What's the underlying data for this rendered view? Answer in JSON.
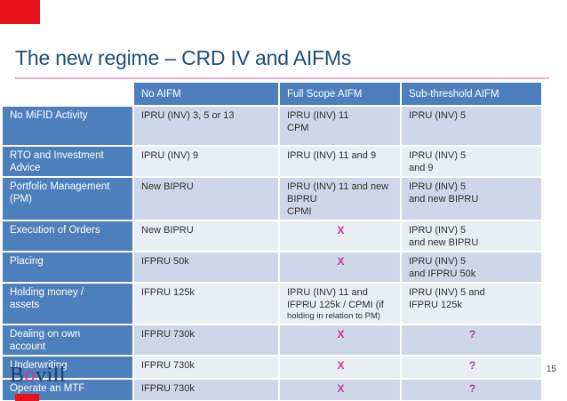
{
  "slide": {
    "title": "The new regime – CRD IV and AIFMs",
    "page_number": "15",
    "logo": {
      "b": "B",
      "o": "o",
      "rest": "vill"
    }
  },
  "colors": {
    "accent_red": "#e9131e",
    "title_blue": "#1d4e79",
    "pink_line": "#f4aec8",
    "header_blue": "#4c7fbb",
    "band_dark": "#cdd7e7",
    "band_light": "#e9edf4",
    "pink_accent": "#cc3399",
    "logo_navy": "#223a6d",
    "logo_o_pink": "#d5368f",
    "cell_text": "#2e2e2e"
  },
  "table": {
    "column_headers": [
      "",
      "No AIFM",
      "Full Scope AIFM",
      "Sub-threshold AIFM"
    ],
    "rows": [
      {
        "label_lines": [
          "No MiFID Activity"
        ],
        "cells": [
          {
            "lines": [
              {
                "t": "IPRU (INV) 3, 5 or 13"
              }
            ]
          },
          {
            "lines": [
              {
                "t": "IPRU (INV) 11"
              },
              {
                "t": "CPM"
              }
            ]
          },
          {
            "lines": [
              {
                "t": "IPRU (INV) 5"
              }
            ]
          }
        ]
      },
      {
        "label_lines": [
          "RTO and Investment",
          "Advice"
        ],
        "cells": [
          {
            "lines": [
              {
                "t": "IPRU (INV) 9"
              }
            ]
          },
          {
            "lines": [
              {
                "t": "IPRU (INV) 11 and 9"
              }
            ]
          },
          {
            "lines": [
              {
                "t": "IPRU (INV) 5"
              },
              {
                "t": "and 9"
              }
            ]
          }
        ]
      },
      {
        "label_lines": [
          "Portfolio Management",
          "(PM)"
        ],
        "cells": [
          {
            "lines": [
              {
                "t": "New BIPRU"
              }
            ]
          },
          {
            "lines": [
              {
                "t": "IPRU (INV) 11 and new"
              },
              {
                "t": "BIPRU"
              },
              {
                "t": "CPMI"
              }
            ]
          },
          {
            "lines": [
              {
                "t": "IPRU (INV) 5"
              },
              {
                "t": "and new BIPRU"
              }
            ]
          }
        ]
      },
      {
        "label_lines": [
          "Execution of Orders"
        ],
        "cells": [
          {
            "lines": [
              {
                "t": "New BIPRU"
              }
            ]
          },
          {
            "pink": true,
            "lines": [
              {
                "t": "X"
              }
            ]
          },
          {
            "lines": [
              {
                "t": "IPRU (INV) 5"
              },
              {
                "t": "and new BIPRU"
              }
            ]
          }
        ]
      },
      {
        "label_lines": [
          "Placing"
        ],
        "cells": [
          {
            "lines": [
              {
                "t": "IFPRU 50k"
              }
            ]
          },
          {
            "pink": true,
            "lines": [
              {
                "t": "X"
              }
            ]
          },
          {
            "lines": [
              {
                "t": "IPRU (INV) 5"
              },
              {
                "t": "and IFPRU 50k"
              }
            ]
          }
        ]
      },
      {
        "label_lines": [
          "Holding money /",
          "assets"
        ],
        "cells": [
          {
            "lines": [
              {
                "t": "IFPRU 125k"
              }
            ]
          },
          {
            "lines": [
              {
                "t": "IPRU (INV) 11 and"
              },
              {
                "t": "IFPRU 125k / CPMI (if"
              },
              {
                "t": "holding in relation to PM)",
                "small": true
              }
            ]
          },
          {
            "lines": [
              {
                "t": "IPRU (INV) 5 and"
              },
              {
                "t": "IFPRU 125k"
              }
            ]
          }
        ]
      },
      {
        "label_lines": [
          "Dealing on own",
          "account"
        ],
        "cells": [
          {
            "lines": [
              {
                "t": "IFPRU 730k"
              }
            ]
          },
          {
            "pink": true,
            "lines": [
              {
                "t": "X"
              }
            ]
          },
          {
            "pink": true,
            "lines": [
              {
                "t": "?"
              }
            ]
          }
        ]
      },
      {
        "label_lines": [
          "Underwriting"
        ],
        "cells": [
          {
            "lines": [
              {
                "t": "IFPRU 730k"
              }
            ]
          },
          {
            "pink": true,
            "lines": [
              {
                "t": "X"
              }
            ]
          },
          {
            "pink": true,
            "lines": [
              {
                "t": "?"
              }
            ]
          }
        ]
      },
      {
        "label_lines": [
          "Operate an MTF"
        ],
        "cells": [
          {
            "lines": [
              {
                "t": "IFPRU 730k"
              }
            ]
          },
          {
            "pink": true,
            "lines": [
              {
                "t": "X"
              }
            ]
          },
          {
            "pink": true,
            "lines": [
              {
                "t": "?"
              }
            ]
          }
        ]
      }
    ]
  }
}
